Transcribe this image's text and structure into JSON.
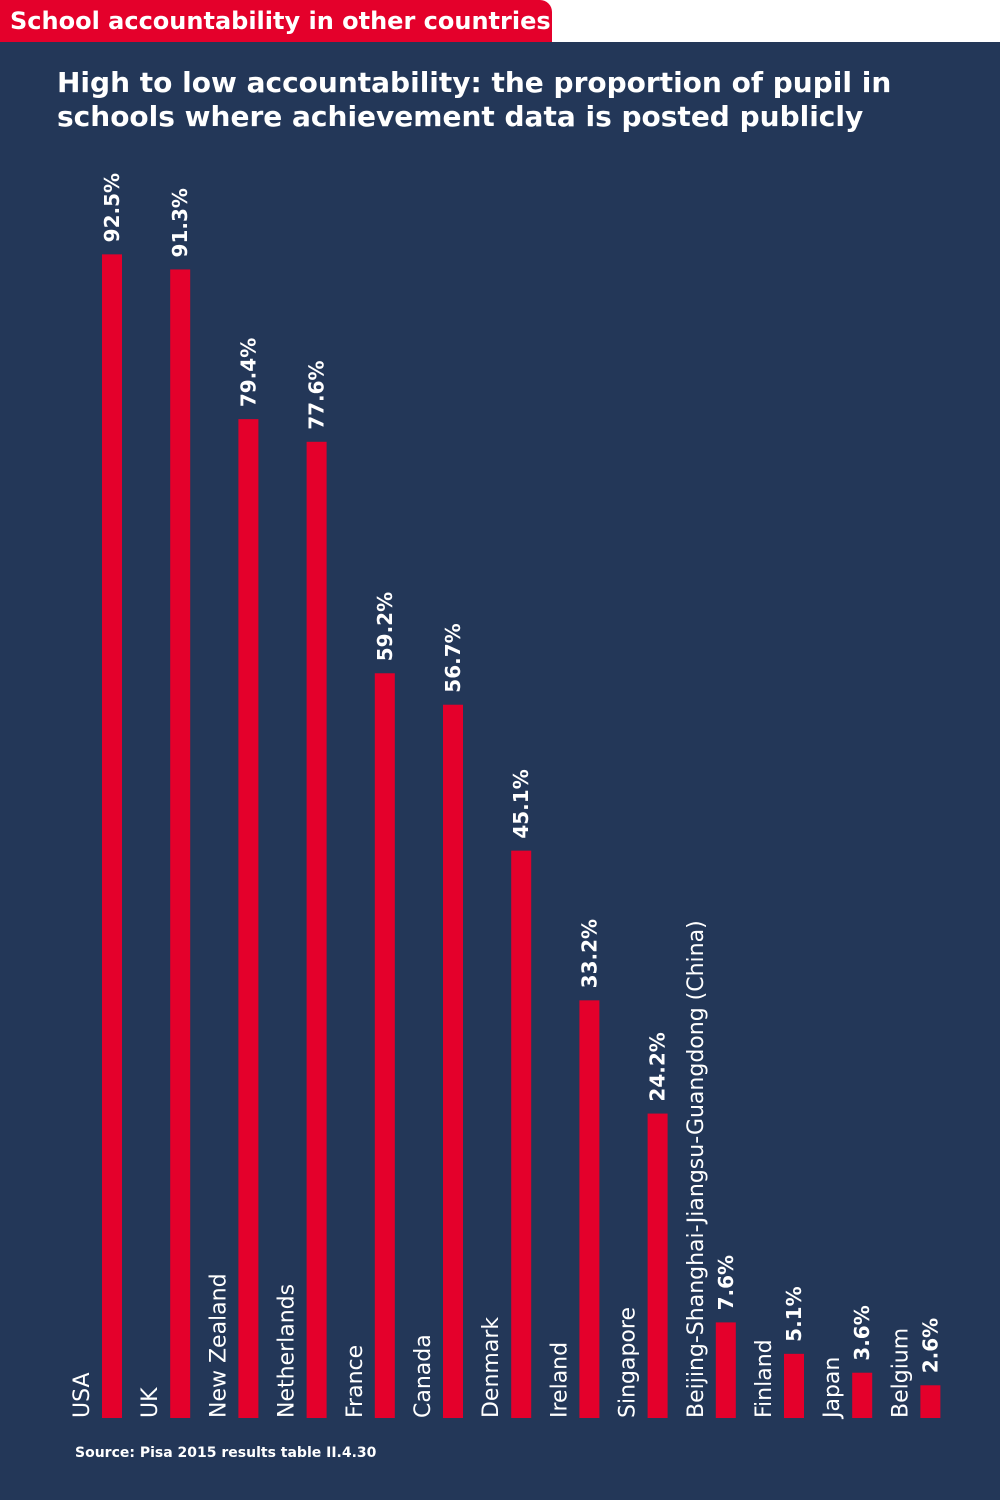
{
  "banner": "School accountability in other countries",
  "chart_data": {
    "type": "bar",
    "orientation": "vertical",
    "title": "High to low accountability: the proportion of pupil in schools where achievement data is posted publicly",
    "categories": [
      "USA",
      "UK",
      "New Zealand",
      "Netherlands",
      "France",
      "Canada",
      "Denmark",
      "Ireland",
      "Singapore",
      "Beijing-Shanghai-Jiangsu-Guangdong (China)",
      "Finland",
      "Japan",
      "Belgium"
    ],
    "values": [
      92.5,
      91.3,
      79.4,
      77.6,
      59.2,
      56.7,
      45.1,
      33.2,
      24.2,
      7.6,
      5.1,
      3.6,
      2.6
    ],
    "value_labels": [
      "92.5%",
      "91.3%",
      "79.4%",
      "77.6%",
      "59.2%",
      "56.7%",
      "45.1%",
      "33.2%",
      "24.2%",
      "7.6%",
      "5.1%",
      "3.6%",
      "2.6%"
    ],
    "unit": "%",
    "ylim": [
      0,
      100
    ],
    "grid": false,
    "legend": "none",
    "bar_color": "#e4002b",
    "label_orientation": "rotated vertical"
  },
  "source": "Source: Pisa 2015 results table II.4.30",
  "colors": {
    "background": "#233758",
    "accent": "#e4002b",
    "text": "#ffffff"
  }
}
